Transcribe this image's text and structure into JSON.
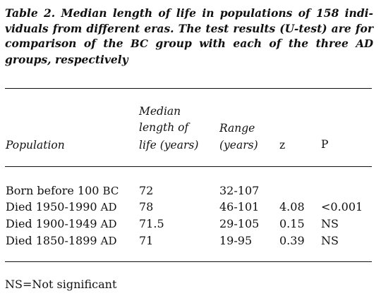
{
  "caption": {
    "prefix": "Table 2. Median length of life in populations of 158 indi-viduals from different eras. The test results (U-test) are for comparison of the ",
    "bc": "BC",
    "middle": " group with each of the three ",
    "ad": "AD",
    "suffix": " groups, respectively"
  },
  "headers": {
    "population": "Population",
    "median_line1": "Median",
    "median_line2": "length of",
    "median_line3": "life (years)",
    "range_line1": "Range",
    "range_line2": "(years)",
    "z": "z",
    "p": "P"
  },
  "rows": [
    {
      "population": "Born before 100 ",
      "era": "BC",
      "median": "72",
      "range": "32-107",
      "z": "",
      "p": ""
    },
    {
      "population": "Died 1950-1990 ",
      "era": "AD",
      "median": "78",
      "range": "46-101",
      "z": "4.08",
      "p": "<0.001"
    },
    {
      "population": "Died 1900-1949 ",
      "era": "AD",
      "median": "71.5",
      "range": "29-105",
      "z": "0.15",
      "p": "NS"
    },
    {
      "population": "Died 1850-1899 ",
      "era": "AD",
      "median": "71",
      "range": "19-95",
      "z": "0.39",
      "p": "NS"
    }
  ],
  "footnote": "NS=Not significant"
}
